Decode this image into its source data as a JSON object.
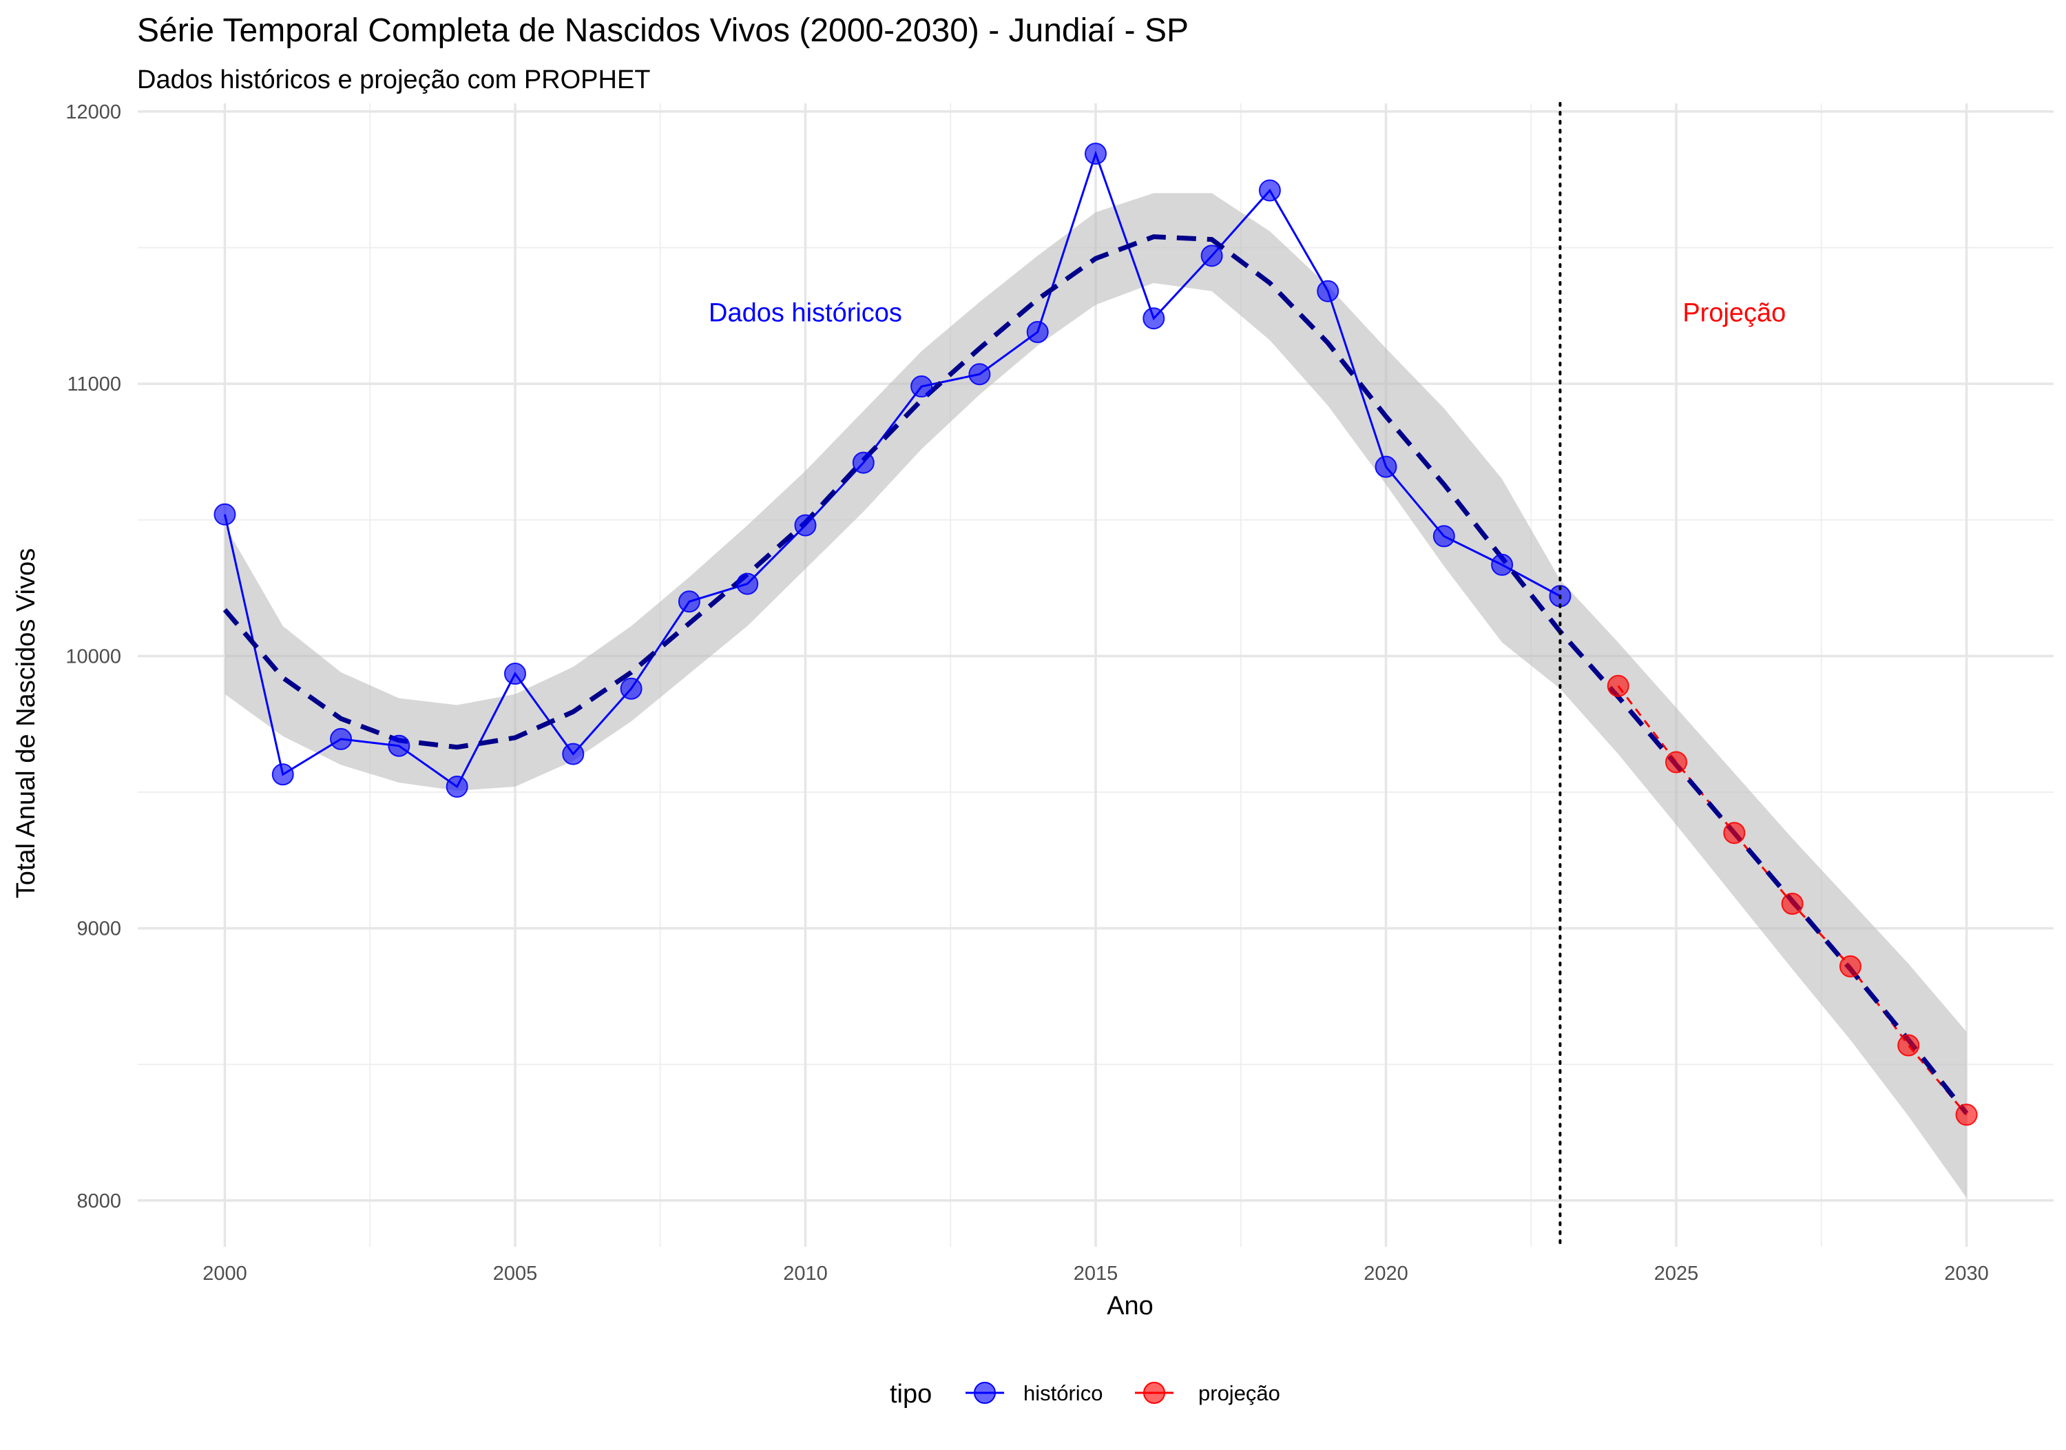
{
  "chart_data": {
    "type": "line",
    "title": "Série Temporal Completa de Nascidos Vivos (2000-2030) -  Jundiaí - SP",
    "subtitle": "Dados históricos e projeção com PROPHET",
    "xlabel": "Ano",
    "ylabel": "Total Anual de Nascidos Vivos",
    "xlim": [
      1998.5,
      2031.5
    ],
    "ylim": [
      7830,
      12030
    ],
    "x_ticks": [
      2000,
      2005,
      2010,
      2015,
      2020,
      2025,
      2030
    ],
    "x_minor_ticks": [
      2002.5,
      2007.5,
      2012.5,
      2017.5,
      2022.5,
      2027.5
    ],
    "y_ticks": [
      8000,
      9000,
      10000,
      11000,
      12000
    ],
    "y_minor_ticks": [
      8500,
      9500,
      10500,
      11500
    ],
    "grid": true,
    "legend_position": "bottom",
    "legend_title": "tipo",
    "split_x": 2023,
    "annotations": [
      {
        "text": "Dados históricos",
        "x": 2010,
        "y": 11260,
        "color": "#0000ff"
      },
      {
        "text": "Projeção",
        "x": 2026,
        "y": 11260,
        "color": "#ff0000"
      }
    ],
    "series": [
      {
        "name": "histórico",
        "color": "#0000ff",
        "x": [
          2000,
          2001,
          2002,
          2003,
          2004,
          2005,
          2006,
          2007,
          2008,
          2009,
          2010,
          2011,
          2012,
          2013,
          2014,
          2015,
          2016,
          2017,
          2018,
          2019,
          2020,
          2021,
          2022,
          2023
        ],
        "values": [
          10520,
          9565,
          9695,
          9670,
          9520,
          9935,
          9640,
          9880,
          10200,
          10265,
          10480,
          10710,
          10990,
          11035,
          11190,
          11845,
          11240,
          11470,
          11710,
          11340,
          10695,
          10440,
          10335,
          10220
        ]
      },
      {
        "name": "projeção",
        "color": "#ff0000",
        "x": [
          2024,
          2025,
          2026,
          2027,
          2028,
          2029,
          2030
        ],
        "values": [
          9890,
          9610,
          9350,
          9090,
          8860,
          8570,
          8315
        ]
      }
    ],
    "trend": {
      "color": "#00008b",
      "x": [
        2000,
        2001,
        2002,
        2003,
        2004,
        2005,
        2006,
        2007,
        2008,
        2009,
        2010,
        2011,
        2012,
        2013,
        2014,
        2015,
        2016,
        2017,
        2018,
        2019,
        2020,
        2021,
        2022,
        2023,
        2024,
        2025,
        2026,
        2027,
        2028,
        2029,
        2030
      ],
      "values": [
        10170,
        9920,
        9770,
        9690,
        9665,
        9700,
        9795,
        9940,
        10120,
        10300,
        10490,
        10720,
        10940,
        11130,
        11310,
        11460,
        11540,
        11530,
        11370,
        11150,
        10880,
        10630,
        10360,
        10090,
        9850,
        9600,
        9350,
        9100,
        8850,
        8590,
        8320
      ],
      "lower": [
        9860,
        9705,
        9600,
        9535,
        9505,
        9520,
        9615,
        9760,
        9935,
        10110,
        10320,
        10530,
        10760,
        10960,
        11140,
        11290,
        11370,
        11340,
        11160,
        10920,
        10630,
        10330,
        10050,
        9880,
        9640,
        9380,
        9115,
        8850,
        8590,
        8310,
        8010
      ],
      "upper": [
        10480,
        10110,
        9940,
        9845,
        9820,
        9860,
        9960,
        10110,
        10290,
        10480,
        10680,
        10900,
        11120,
        11300,
        11470,
        11630,
        11700,
        11700,
        11560,
        11360,
        11130,
        10910,
        10650,
        10280,
        10050,
        9810,
        9570,
        9330,
        9100,
        8870,
        8620
      ]
    }
  }
}
